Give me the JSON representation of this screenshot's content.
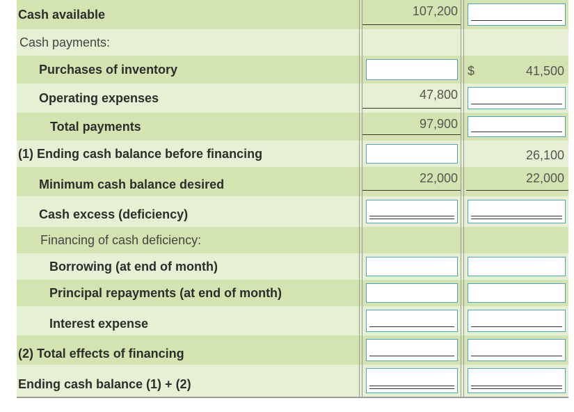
{
  "rows": {
    "cash_available": {
      "label": "Cash available",
      "col1": "107,200"
    },
    "cash_payments": {
      "label": "Cash payments:"
    },
    "purchases": {
      "label": "Purchases of inventory",
      "currency": "$",
      "col2": "41,500"
    },
    "operating": {
      "label": "Operating expenses",
      "col1": "47,800"
    },
    "total_payments": {
      "label": "Total payments",
      "col1": "97,900"
    },
    "ending_before": {
      "label": "(1) Ending cash balance before financing",
      "col2": "26,100"
    },
    "minimum": {
      "label": "Minimum cash balance desired",
      "col1": "22,000",
      "col2": "22,000"
    },
    "excess": {
      "label": "Cash excess (deficiency)"
    },
    "financing": {
      "label": "Financing of cash deficiency:"
    },
    "borrowing": {
      "label": "Borrowing (at end of month)"
    },
    "principal": {
      "label": "Principal repayments (at end of month)"
    },
    "interest": {
      "label": "Interest expense"
    },
    "total_effects": {
      "label": "(2) Total effects of financing"
    },
    "ending_cash": {
      "label": "Ending cash balance (1) + (2)"
    }
  },
  "colors": {
    "row_dark": "#d4e4b0",
    "row_light": "#e6f0d2",
    "input_border": "#4fa6b8"
  }
}
